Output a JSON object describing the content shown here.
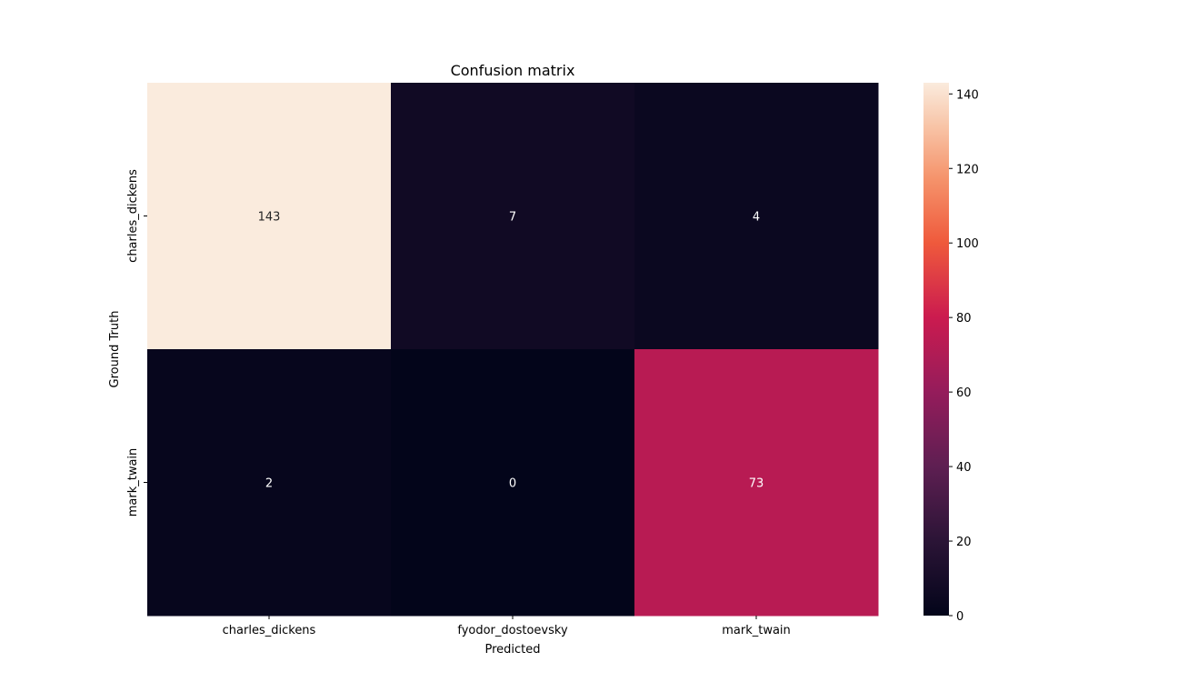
{
  "chart_data": {
    "type": "heatmap",
    "title": "Confusion matrix",
    "xlabel": "Predicted",
    "ylabel": "Ground Truth",
    "x_categories": [
      "charles_dickens",
      "fyodor_dostoevsky",
      "mark_twain"
    ],
    "y_categories": [
      "charles_dickens",
      "mark_twain"
    ],
    "values": [
      [
        143,
        7,
        4
      ],
      [
        2,
        0,
        73
      ]
    ],
    "colorbar": {
      "min": 0,
      "max": 143,
      "ticks": [
        0,
        20,
        40,
        60,
        80,
        100,
        120,
        140
      ],
      "colormap": "rocket"
    }
  }
}
